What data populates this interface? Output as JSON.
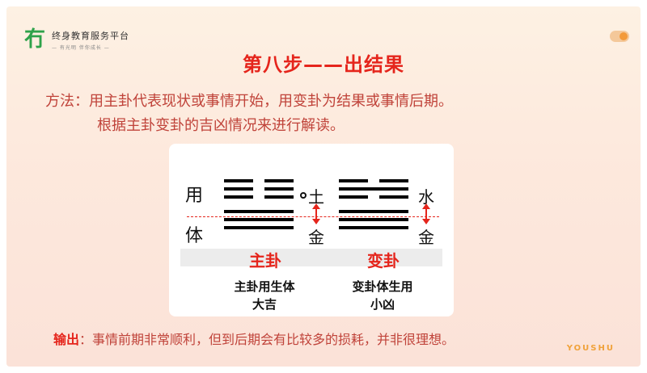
{
  "logo": {
    "mark": " 冇",
    "name": "终身教育服务平台",
    "sub": "— 有光明 伴你成长 —"
  },
  "title": "第八步——出结果",
  "method": {
    "line1": "方法：用主卦代表现状或事情开始，用变卦为结果或事情后期。",
    "line2": "根据主卦变卦的吉凶情况来进行解读。"
  },
  "diagram": {
    "upper_label": "用",
    "lower_label": "体",
    "main": {
      "name": "主卦",
      "upper_element": "土",
      "lower_element": "金",
      "desc_line1": "主卦用生体",
      "desc_line2": "大吉"
    },
    "changed": {
      "name": "变卦",
      "upper_element": "水",
      "lower_element": "金",
      "desc_line1": "变卦体生用",
      "desc_line2": "小凶"
    }
  },
  "output": {
    "label": "输出",
    "text": "：事情前期非常顺利，但到后期会有比较多的损耗，并非很理想。"
  },
  "brand": "YOUSHU",
  "colors": {
    "accent_red": "#e5251c",
    "body_red": "#c0433a",
    "logo_green": "#2ea24a",
    "brand_orange": "#f0a23a"
  }
}
